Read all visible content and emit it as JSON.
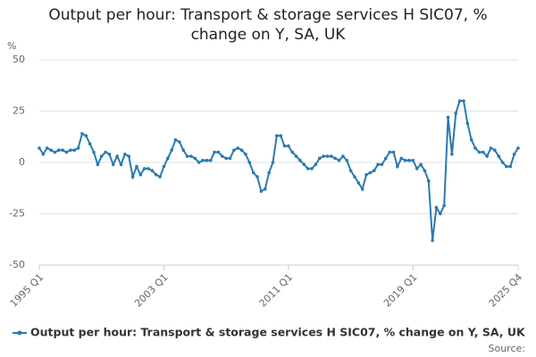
{
  "chart_data": {
    "type": "line",
    "title": "Output per hour: Transport & storage services H SIC07, % change on Y, SA, UK",
    "y_label": "%",
    "source": "Source:",
    "categories": [
      "1995 Q1",
      null,
      null,
      null,
      null,
      null,
      null,
      null,
      null,
      null,
      null,
      null,
      null,
      null,
      null,
      null,
      null,
      null,
      null,
      null,
      null,
      null,
      null,
      null,
      null,
      null,
      null,
      null,
      null,
      null,
      null,
      null,
      "2003 Q1",
      null,
      null,
      null,
      null,
      null,
      null,
      null,
      null,
      null,
      null,
      null,
      null,
      null,
      null,
      null,
      null,
      null,
      null,
      null,
      null,
      null,
      null,
      null,
      null,
      null,
      null,
      null,
      null,
      null,
      null,
      null,
      "2011 Q1",
      null,
      null,
      null,
      null,
      null,
      null,
      null,
      null,
      null,
      null,
      null,
      null,
      null,
      null,
      null,
      null,
      null,
      null,
      null,
      null,
      null,
      null,
      null,
      null,
      null,
      null,
      null,
      null,
      null,
      null,
      null,
      "2019 Q1",
      null,
      null,
      null,
      null,
      null,
      null,
      null,
      null,
      null,
      null,
      null,
      null,
      null,
      null,
      null,
      null,
      null,
      null,
      null,
      null,
      null,
      null,
      null,
      null,
      null,
      null,
      "2025 Q4"
    ],
    "series": [
      {
        "name": "Output per hour: Transport & storage services H SIC07, % change on Y, SA, UK",
        "color": "#2a7ab0",
        "values": [
          7,
          4,
          7,
          6,
          5,
          6,
          6,
          5,
          6,
          6,
          7,
          14,
          13,
          9,
          5,
          -1,
          3,
          5,
          4,
          -1,
          3,
          -1,
          4,
          3,
          -7,
          -2,
          -6,
          -3,
          -3,
          -4,
          -6,
          -7,
          -2,
          2,
          6,
          11,
          10,
          6,
          3,
          3,
          2,
          0,
          1,
          1,
          1,
          5,
          5,
          3,
          2,
          2,
          6,
          7,
          6,
          4,
          0,
          -5,
          -7,
          -14,
          -13,
          -5,
          0,
          13,
          13,
          8,
          8,
          5,
          3,
          1,
          -1,
          -3,
          -3,
          -1,
          2,
          3,
          3,
          3,
          2,
          1,
          3,
          1,
          -4,
          -7,
          -10,
          -13,
          -6,
          -5,
          -4,
          -1,
          -1,
          2,
          5,
          5,
          -2,
          2,
          1,
          1,
          1,
          -3,
          -1,
          -4,
          -9,
          -38,
          -22,
          -25,
          -21,
          22,
          4,
          24,
          30,
          30,
          19,
          11,
          7,
          5,
          5,
          3,
          7,
          6,
          3,
          0,
          -2,
          -2,
          4,
          7
        ]
      }
    ],
    "ylim": [
      -50,
      50
    ],
    "yticks": [
      50,
      25,
      0,
      -25,
      -50
    ],
    "grid": true,
    "legend": "bottom"
  }
}
